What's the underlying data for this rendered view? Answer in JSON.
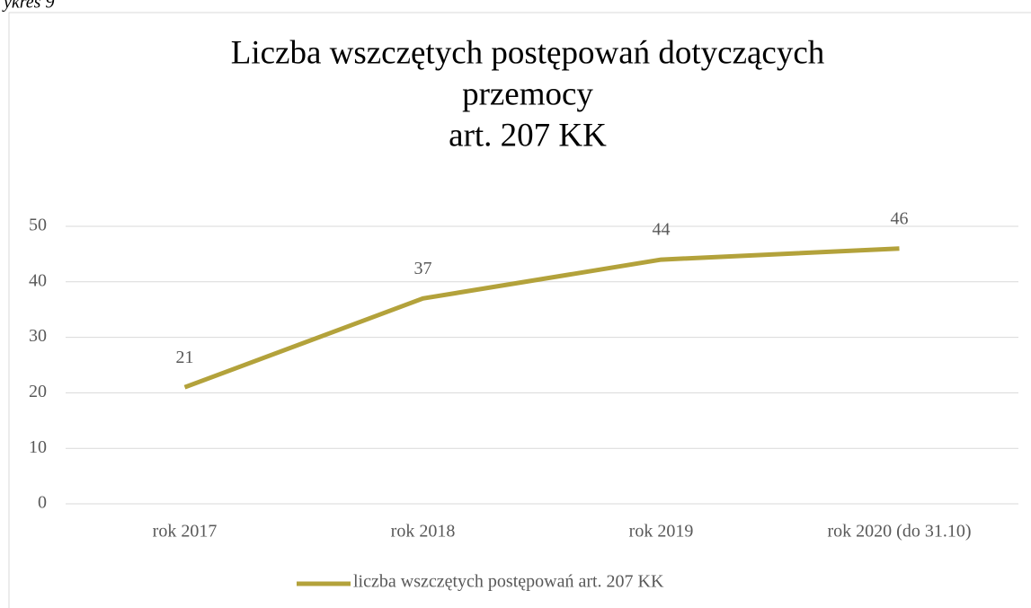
{
  "caption": "ykres 9",
  "chart_data": {
    "type": "line",
    "title": [
      "Liczba wszczętych postępowań dotyczących",
      "przemocy",
      "art. 207 KK"
    ],
    "categories": [
      "rok 2017",
      "rok 2018",
      "rok 2019",
      "rok 2020 (do 31.10)"
    ],
    "series": [
      {
        "name": "liczba wszczętych postępowań art. 207 KK",
        "color": "#b3a23b",
        "values": [
          21,
          37,
          44,
          46
        ]
      }
    ],
    "ylim": [
      0,
      50
    ],
    "yticks": [
      0,
      10,
      20,
      30,
      40,
      50
    ],
    "grid": true,
    "legend": "bottom"
  }
}
